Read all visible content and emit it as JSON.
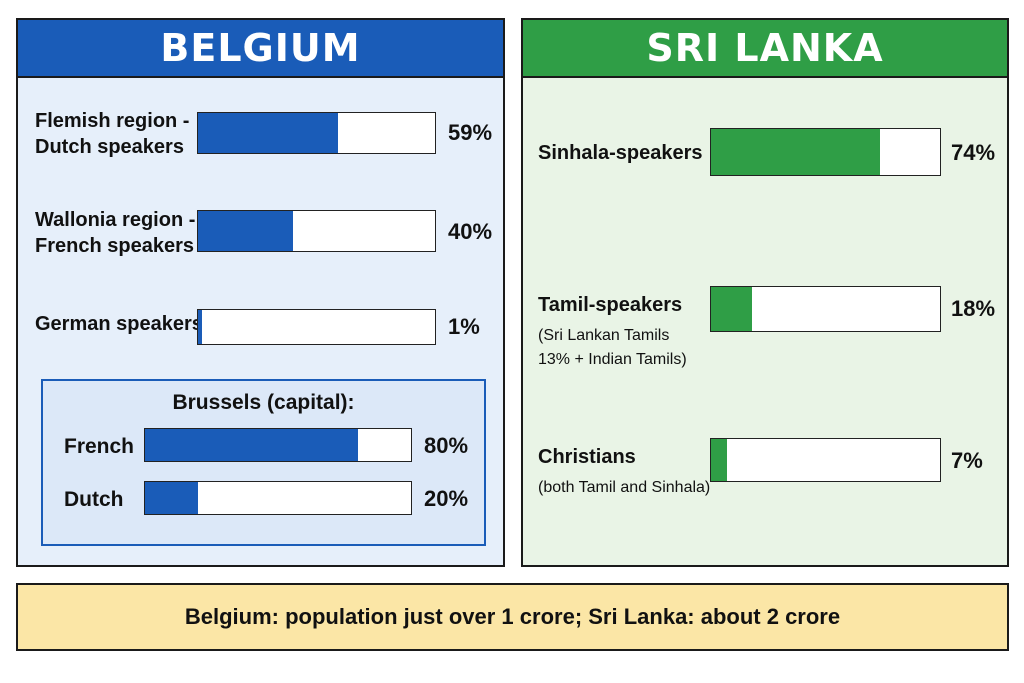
{
  "belgium": {
    "title": "BELGIUM",
    "rows": [
      {
        "line1": "Flemish region -",
        "line2": "Dutch speakers",
        "value": 59,
        "label": "59%"
      },
      {
        "line1": "Wallonia region -",
        "line2": "French speakers",
        "value": 40,
        "label": "40%"
      },
      {
        "line1": "German speakers",
        "line2": "",
        "value": 1,
        "label": "1%"
      }
    ],
    "brussels": {
      "title": "Brussels (capital):",
      "rows": [
        {
          "name": "French",
          "value": 80,
          "label": "80%"
        },
        {
          "name": "Dutch",
          "value": 20,
          "label": "20%"
        }
      ]
    }
  },
  "srilanka": {
    "title": "SRI LANKA",
    "rows": [
      {
        "name": "Sinhala-speakers",
        "note1": "",
        "note2": "",
        "value": 74,
        "label": "74%"
      },
      {
        "name": "Tamil-speakers",
        "note1": "(Sri Lankan Tamils",
        "note2": "13% + Indian Tamils)",
        "value": 18,
        "label": "18%"
      },
      {
        "name": "Christians",
        "note1": "(both Tamil and Sinhala)",
        "note2": "",
        "value": 7,
        "label": "7%"
      }
    ]
  },
  "footer": "Belgium: population just over 1 crore; Sri Lanka: about 2 crore",
  "colors": {
    "belgium": "#1a5cb8",
    "srilanka": "#2f9e46",
    "footer": "#fbe6a6"
  },
  "chart_data": [
    {
      "type": "bar",
      "title": "BELGIUM",
      "categories": [
        "Flemish region - Dutch speakers",
        "Wallonia region - French speakers",
        "German speakers"
      ],
      "values": [
        59,
        40,
        1
      ],
      "ylim": [
        0,
        100
      ]
    },
    {
      "type": "bar",
      "title": "Brussels (capital):",
      "categories": [
        "French",
        "Dutch"
      ],
      "values": [
        80,
        20
      ],
      "ylim": [
        0,
        100
      ]
    },
    {
      "type": "bar",
      "title": "SRI LANKA",
      "categories": [
        "Sinhala-speakers",
        "Tamil-speakers",
        "Christians"
      ],
      "values": [
        74,
        18,
        7
      ],
      "ylim": [
        0,
        100
      ]
    }
  ]
}
